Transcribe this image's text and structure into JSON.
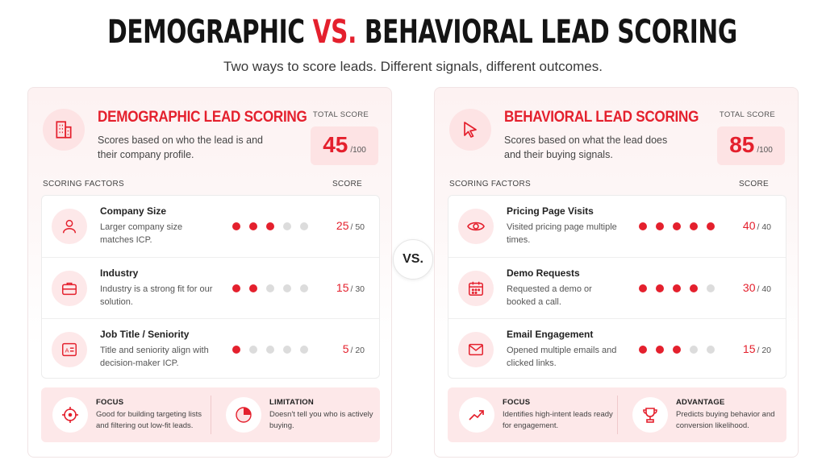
{
  "title": {
    "part1": "DEMOGRAPHIC",
    "accent": "VS.",
    "part2": "BEHAVIORAL LEAD SCORING"
  },
  "subtitle": "Two ways to score leads. Different signals, different outcomes.",
  "vs_label": "VS.",
  "accent_color": "#e4202d",
  "panels": {
    "demographic": {
      "icon": "building-icon",
      "title": "DEMOGRAPHIC LEAD SCORING",
      "description": "Scores based on who the lead is and their company profile.",
      "total_label": "TOTAL SCORE",
      "total_value": "45",
      "total_max": "/100",
      "factors_header": "SCORING FACTORS",
      "score_header": "SCORE",
      "factors": [
        {
          "icon": "user-icon",
          "name": "Company Size",
          "description": "Larger company size matches ICP.",
          "filled_dots": 3,
          "score": "25",
          "max": "/ 50"
        },
        {
          "icon": "briefcase-icon",
          "name": "Industry",
          "description": "Industry is a strong fit for our solution.",
          "filled_dots": 2,
          "score": "15",
          "max": "/ 30"
        },
        {
          "icon": "id-card-icon",
          "name": "Job Title / Seniority",
          "description": "Title and seniority align with decision-maker ICP.",
          "filled_dots": 1,
          "score": "5",
          "max": "/ 20"
        }
      ],
      "notes": [
        {
          "icon": "target-icon",
          "title": "FOCUS",
          "description": "Good for building targeting lists and filtering out low-fit leads."
        },
        {
          "icon": "pie-chart-icon",
          "title": "LIMITATION",
          "description": "Doesn't tell you who is actively buying."
        }
      ]
    },
    "behavioral": {
      "icon": "cursor-icon",
      "title": "BEHAVIORAL LEAD SCORING",
      "description": "Scores based on what the lead does and their buying signals.",
      "total_label": "TOTAL SCORE",
      "total_value": "85",
      "total_max": "/100",
      "factors_header": "SCORING FACTORS",
      "score_header": "SCORE",
      "factors": [
        {
          "icon": "eye-icon",
          "name": "Pricing Page Visits",
          "description": "Visited pricing page multiple times.",
          "filled_dots": 5,
          "score": "40",
          "max": "/ 40"
        },
        {
          "icon": "calendar-icon",
          "name": "Demo Requests",
          "description": "Requested a demo or booked a call.",
          "filled_dots": 4,
          "score": "30",
          "max": "/ 40"
        },
        {
          "icon": "mail-icon",
          "name": "Email Engagement",
          "description": "Opened multiple emails and clicked links.",
          "filled_dots": 3,
          "score": "15",
          "max": "/ 20"
        }
      ],
      "notes": [
        {
          "icon": "trend-up-icon",
          "title": "FOCUS",
          "description": "Identifies high-intent leads ready for engagement."
        },
        {
          "icon": "trophy-icon",
          "title": "ADVANTAGE",
          "description": "Predicts buying behavior and conversion likelihood."
        }
      ]
    }
  }
}
